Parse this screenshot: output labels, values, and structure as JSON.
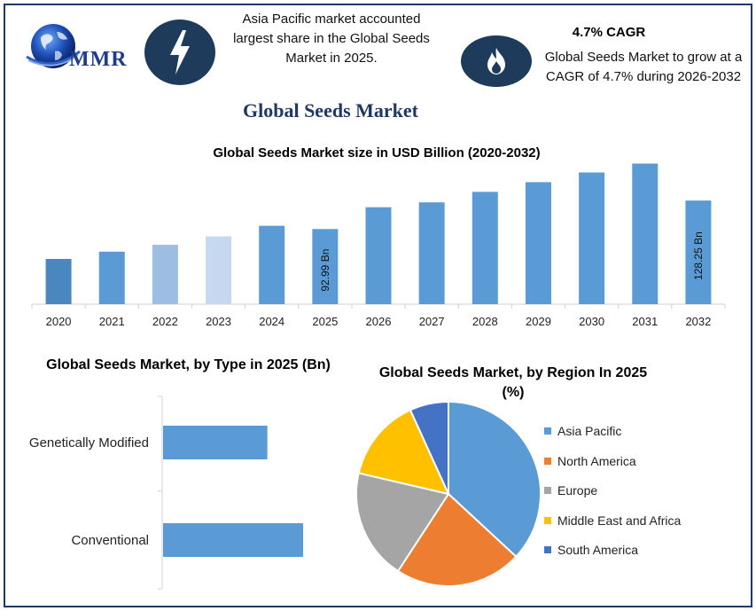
{
  "brand": {
    "name": "MMR"
  },
  "header": {
    "info_left": "Asia Pacific market accounted largest share in the Global Seeds Market in 2025.",
    "cagr_title": "4.7% CAGR",
    "cagr_text": "Global Seeds Market to grow at a CAGR of 4.7% during 2026-2032",
    "main_title": "Global Seeds Market"
  },
  "icons": {
    "left": "lightning-bolt-icon",
    "right": "flame-icon",
    "logo": "globe-icon"
  },
  "chart_data": [
    {
      "type": "bar",
      "title": "Global Seeds Market size in USD Billion (2020-2032)",
      "categories": [
        "2020",
        "2021",
        "2022",
        "2023",
        "2024",
        "2025",
        "2026",
        "2027",
        "2028",
        "2029",
        "2030",
        "2031",
        "2032"
      ],
      "values": [
        56.0,
        65.0,
        73.5,
        84.0,
        97.0,
        92.99,
        120.0,
        126.0,
        139.0,
        151.0,
        163.0,
        174.0,
        128.25
      ],
      "display_values": [
        null,
        null,
        null,
        null,
        null,
        "92.99 Bn",
        null,
        null,
        null,
        null,
        null,
        null,
        "128.25 Bn"
      ],
      "colors": [
        "#4a86c0",
        "#5b9bd5",
        "#9dbde3",
        "#c5d8ef",
        "#5b9bd5",
        "#5b9bd5",
        "#5b9bd5",
        "#5b9bd5",
        "#5b9bd5",
        "#5b9bd5",
        "#5b9bd5",
        "#5b9bd5",
        "#5b9bd5"
      ]
    },
    {
      "type": "bar",
      "orientation": "horizontal",
      "title": "Global Seeds Market, by Type in 2025 (Bn)",
      "categories": [
        "Genetically Modified",
        "Conventional"
      ],
      "values": [
        35,
        47
      ],
      "color": "#5b9bd5"
    },
    {
      "type": "pie",
      "title": "Global Seeds Market, by Region In 2025 (%)",
      "categories": [
        "Asia Pacific",
        "North America",
        "Europe",
        "Middle East and Africa",
        "South America"
      ],
      "values": [
        38,
        23,
        20,
        15,
        7
      ],
      "colors": [
        "#5b9bd5",
        "#ed7d31",
        "#a5a5a5",
        "#ffc000",
        "#4472c4"
      ],
      "legend": "right"
    }
  ]
}
